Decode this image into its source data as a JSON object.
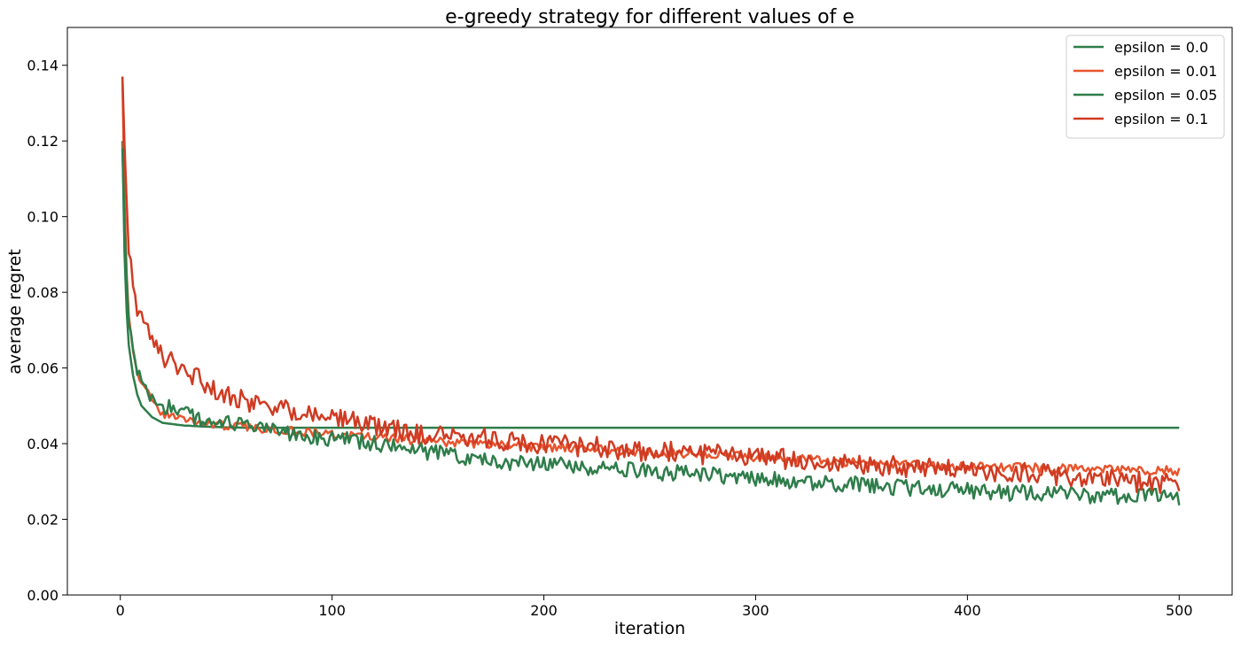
{
  "chart_data": {
    "type": "line",
    "title": "e-greedy strategy for different values of e",
    "xlabel": "iteration",
    "ylabel": "average regret",
    "xlim": [
      -25,
      525
    ],
    "ylim": [
      0,
      0.15
    ],
    "x_ticks": [
      0,
      100,
      200,
      300,
      400,
      500
    ],
    "x_tick_labels": [
      "0",
      "100",
      "200",
      "300",
      "400",
      "500"
    ],
    "y_ticks": [
      0,
      0.02,
      0.04,
      0.06,
      0.08,
      0.1,
      0.12,
      0.14
    ],
    "y_tick_labels": [
      "0.00",
      "0.02",
      "0.04",
      "0.06",
      "0.08",
      "0.10",
      "0.12",
      "0.14"
    ],
    "grid": false,
    "legend_position": "top-right",
    "x": [
      1,
      2,
      3,
      4,
      6,
      8,
      10,
      15,
      20,
      30,
      40,
      50,
      60,
      80,
      100,
      125,
      150,
      175,
      200,
      250,
      300,
      350,
      400,
      450,
      500
    ],
    "series": [
      {
        "name": "epsilon = 0.0",
        "color": "#2e7d4a",
        "values": [
          0.12,
          0.09,
          0.075,
          0.066,
          0.058,
          0.053,
          0.05,
          0.047,
          0.0455,
          0.0448,
          0.0445,
          0.0443,
          0.0442,
          0.0442,
          0.0442,
          0.0442,
          0.0442,
          0.0442,
          0.0442,
          0.0442,
          0.0442,
          0.0442,
          0.0442,
          0.0442,
          0.0442
        ]
      },
      {
        "name": "epsilon = 0.01",
        "color": "#e8552e",
        "values": [
          0.137,
          0.104,
          0.085,
          0.075,
          0.065,
          0.059,
          0.056,
          0.051,
          0.048,
          0.0465,
          0.0455,
          0.0448,
          0.0443,
          0.0435,
          0.0425,
          0.0415,
          0.0405,
          0.0398,
          0.039,
          0.0378,
          0.0365,
          0.035,
          0.034,
          0.0333,
          0.0328
        ]
      },
      {
        "name": "epsilon = 0.05",
        "color": "#2e7d4a",
        "values": [
          0.118,
          0.098,
          0.083,
          0.074,
          0.066,
          0.059,
          0.056,
          0.052,
          0.05,
          0.048,
          0.0465,
          0.0452,
          0.0445,
          0.0425,
          0.0415,
          0.0395,
          0.0375,
          0.0355,
          0.0345,
          0.0325,
          0.031,
          0.029,
          0.0275,
          0.0265,
          0.0258
        ]
      },
      {
        "name": "epsilon = 0.1",
        "color": "#cf3b22",
        "values": [
          0.137,
          0.119,
          0.104,
          0.093,
          0.083,
          0.076,
          0.073,
          0.067,
          0.063,
          0.059,
          0.056,
          0.053,
          0.051,
          0.049,
          0.047,
          0.044,
          0.042,
          0.041,
          0.04,
          0.038,
          0.0365,
          0.0345,
          0.0328,
          0.0315,
          0.029
        ]
      }
    ]
  }
}
